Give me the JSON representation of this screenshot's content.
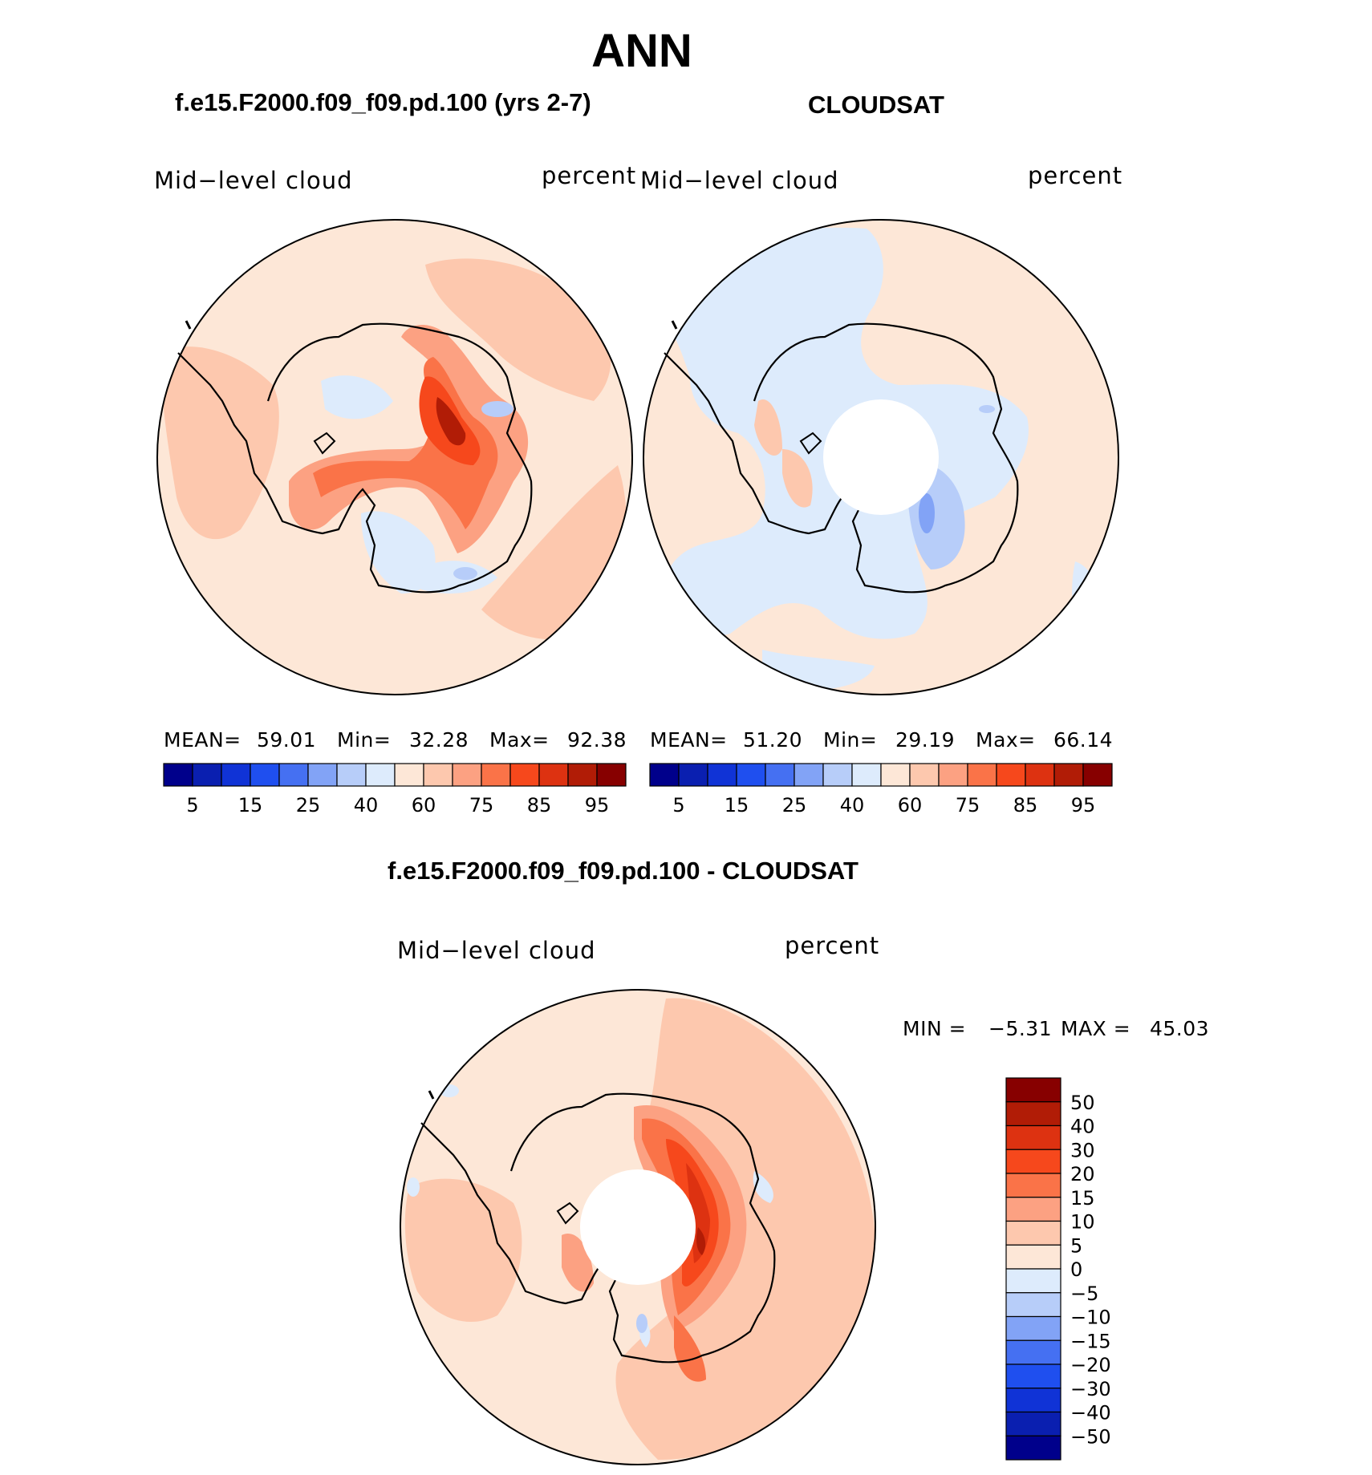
{
  "figure": {
    "title": "ANN",
    "panel_model": {
      "case_title": "f.e15.F2000.f09_f09.pd.100 (yrs 2-7)",
      "variable": "Mid−level  cloud",
      "units": "percent",
      "mean_label": "MEAN=",
      "mean_value": "59.01",
      "min_label": "Min=",
      "min_value": "32.28",
      "max_label": "Max=",
      "max_value": "92.38"
    },
    "panel_obs": {
      "case_title": "CLOUDSAT",
      "variable": "Mid−level  cloud",
      "units": "percent",
      "mean_label": "MEAN=",
      "mean_value": "51.20",
      "min_label": "Min=",
      "min_value": "29.19",
      "max_label": "Max=",
      "max_value": "66.14"
    },
    "panel_diff": {
      "case_title": "f.e15.F2000.f09_f09.pd.100 - CLOUDSAT",
      "variable": "Mid−level  cloud",
      "units": "percent",
      "min_label": "MIN =",
      "min_value": "−5.31",
      "max_label": "MAX =",
      "max_value": "45.03"
    },
    "colorbar_abs": {
      "tick_labels": [
        "5",
        "15",
        "25",
        "40",
        "60",
        "75",
        "85",
        "95"
      ],
      "colors": [
        "#00008b",
        "#0a1fb0",
        "#1033d6",
        "#1f4fef",
        "#4570f2",
        "#82a3f6",
        "#b7cdf9",
        "#ddebfc",
        "#fde7d7",
        "#fdc8ae",
        "#fca182",
        "#fa7348",
        "#f6481c",
        "#dd3211",
        "#b11c06",
        "#870000"
      ]
    },
    "colorbar_diff": {
      "tick_labels": [
        "50",
        "40",
        "30",
        "20",
        "15",
        "10",
        "5",
        "0",
        "−5",
        "−10",
        "−15",
        "−20",
        "−30",
        "−40",
        "−50"
      ],
      "colors": [
        "#870000",
        "#b11c06",
        "#dd3211",
        "#f6481c",
        "#fa7348",
        "#fca182",
        "#fdc8ae",
        "#fde7d7",
        "#ddebfc",
        "#b7cdf9",
        "#82a3f6",
        "#4570f2",
        "#1f4fef",
        "#1033d6",
        "#0a1fb0",
        "#00008b"
      ]
    }
  }
}
